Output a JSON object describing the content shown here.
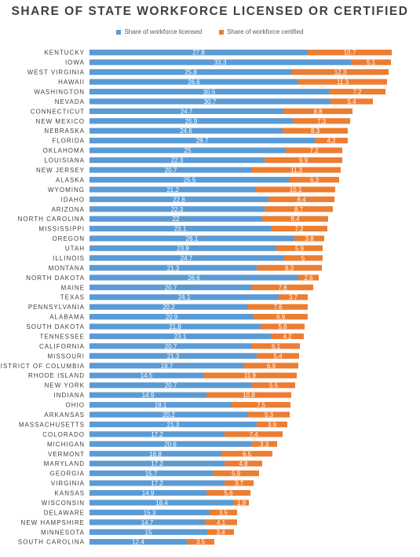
{
  "chart_data": {
    "type": "bar",
    "orientation": "horizontal",
    "stacked": true,
    "title": "SHARE OF STATE WORKFORCE LICENSED OR CERTIFIED",
    "legend_position": "top",
    "grid": false,
    "xlim": [
      0,
      45
    ],
    "categories": [
      "KENTUCKY",
      "IOWA",
      "WEST VIRGINIA",
      "HAWAII",
      "WASHINGTON",
      "NEVADA",
      "CONNECTICUT",
      "NEW MEXICO",
      "NEBRASKA",
      "FLORIDA",
      "OKLAHOMA",
      "LOUISIANA",
      "NEW JERSEY",
      "ALASKA",
      "WYOMING",
      "IDAHO",
      "ARIZONA",
      "NORTH CAROLINA",
      "MISSISSIPPI",
      "OREGON",
      "UTAH",
      "ILLINOIS",
      "MONTANA",
      "NORTH DAKOTA",
      "MAINE",
      "TEXAS",
      "PENNSYLVANIA",
      "ALABAMA",
      "SOUTH DAKOTA",
      "TENNESSEE",
      "CALIFORNIA",
      "MISSOURI",
      "DISTRICT OF COLUMBIA",
      "RHODE ISLAND",
      "NEW YORK",
      "INDIANA",
      "OHIO",
      "ARKANSAS",
      "MASSACHUSETTS",
      "COLORADO",
      "MICHIGAN",
      "VERMONT",
      "MARYLAND",
      "GEORGIA",
      "VIRGINIA",
      "KANSAS",
      "WISCONSIN",
      "DELAWARE",
      "NEW HAMPSHIRE",
      "MINNESOTA",
      "SOUTH CAROLINA"
    ],
    "series": [
      {
        "name": "Share of workforce licensed",
        "color": "#5b9bd5",
        "values": [
          27.8,
          33.3,
          25.8,
          26.6,
          30.5,
          30.7,
          24.7,
          25.9,
          24.6,
          28.7,
          25,
          22.3,
          20.7,
          25.5,
          21.2,
          22.8,
          22.3,
          22,
          23.1,
          26.1,
          23.8,
          24.7,
          21.3,
          26.6,
          20.7,
          24.1,
          20.2,
          20.9,
          21.8,
          23.1,
          20.7,
          21.3,
          19.7,
          14.5,
          20.7,
          14.9,
          18.1,
          20.2,
          21.3,
          17.2,
          20.6,
          16.8,
          17.2,
          15.7,
          17.2,
          14.9,
          18.4,
          15.3,
          14.7,
          15,
          12.4
        ]
      },
      {
        "name": "Share of workforce certified",
        "color": "#ed7d31",
        "values": [
          10.7,
          5.1,
          12.3,
          11.3,
          7.2,
          5.4,
          8.8,
          7.3,
          8.3,
          4.2,
          7.2,
          9.9,
          11.3,
          6.3,
          10.1,
          8.4,
          8.7,
          8.4,
          7.2,
          3.8,
          5.9,
          5,
          8.3,
          2.6,
          7.8,
          3.7,
          7.6,
          6.9,
          5.6,
          4.2,
          6.1,
          5.4,
          6.9,
          11.9,
          5.5,
          10.8,
          7.5,
          5.3,
          3.9,
          7.4,
          3.3,
          6.5,
          4.8,
          5.9,
          3.7,
          5.6,
          1.9,
          3.5,
          4.1,
          3.4,
          3.5
        ]
      }
    ]
  }
}
